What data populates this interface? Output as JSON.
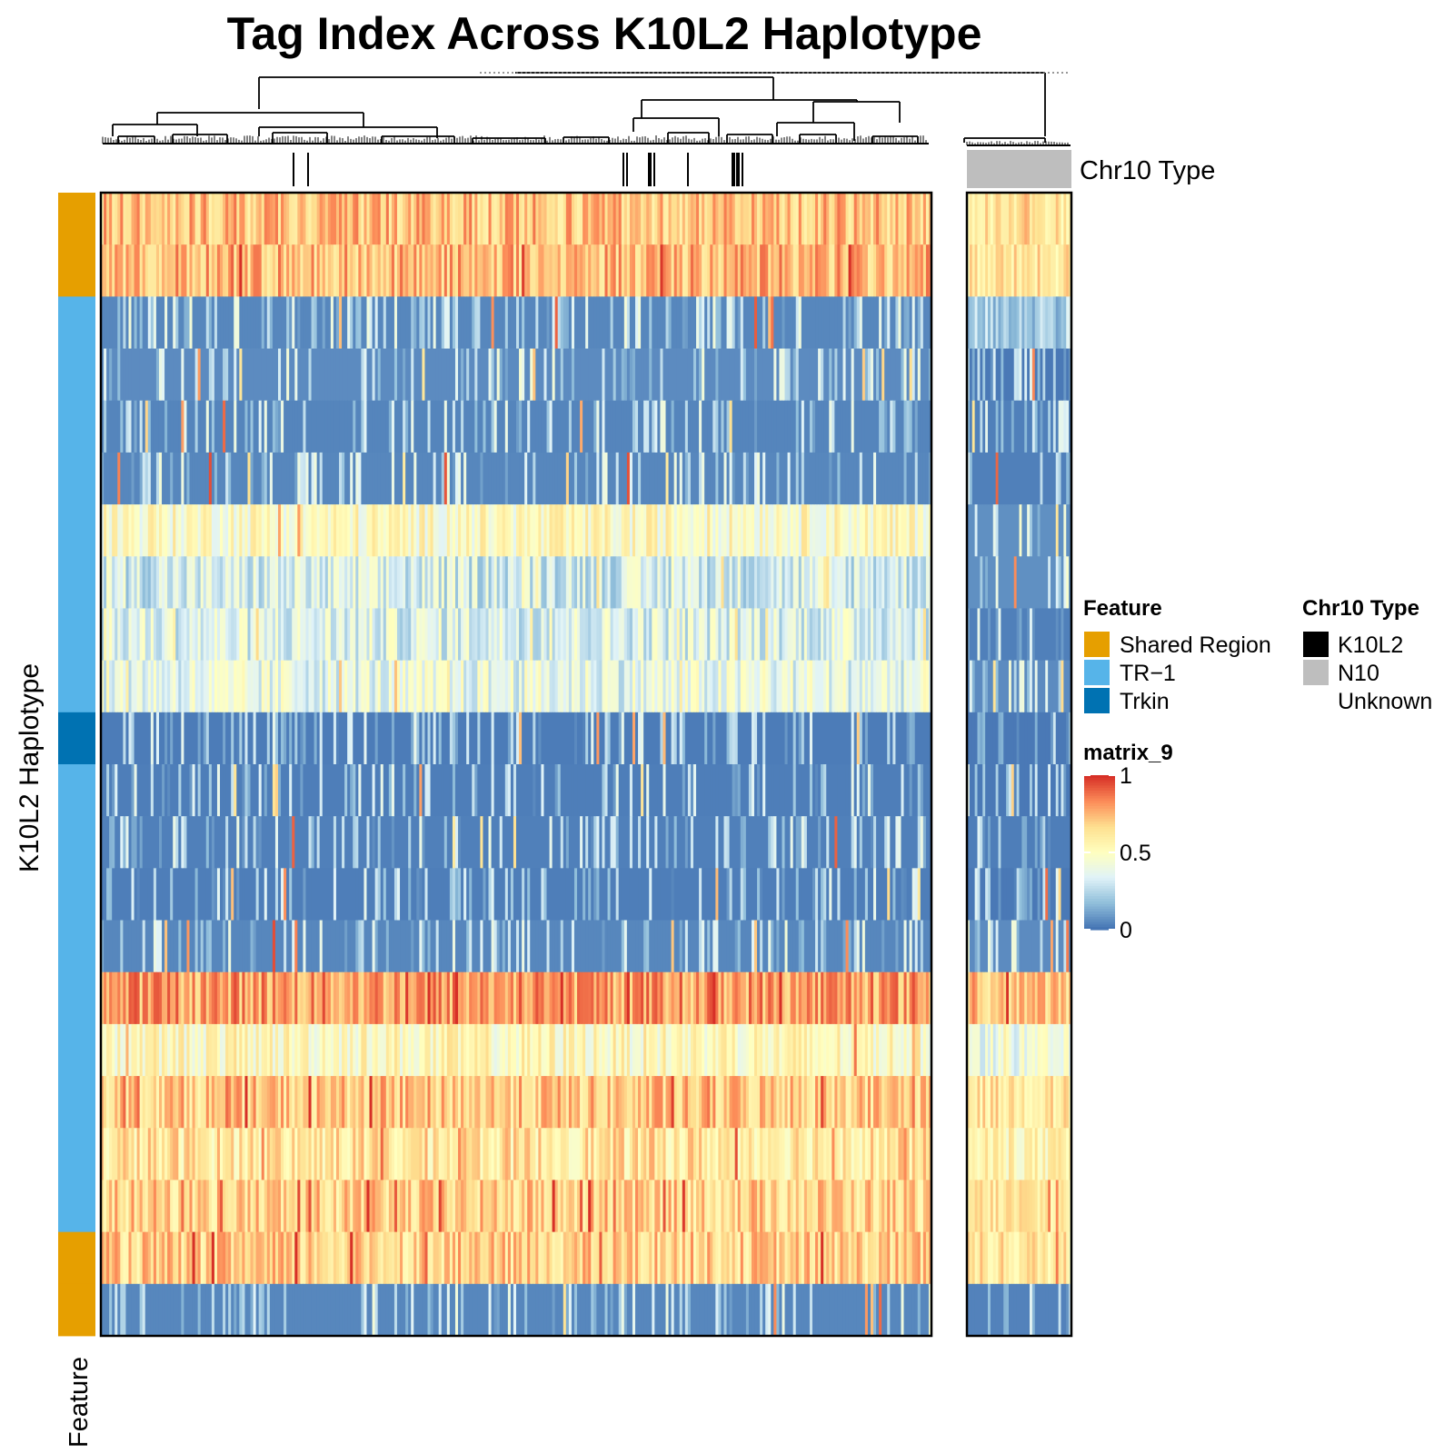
{
  "chart_data": {
    "type": "heatmap",
    "title": "Tag Index Across K10L2 Haplotype",
    "row_axis_label": "K10L2 Haplotype",
    "row_annotation_label": "Feature",
    "column_annotation_label": "Chr10 Type",
    "color_scale": {
      "name": "matrix_9",
      "min": 0,
      "max": 1,
      "ticks": [
        "1",
        "0.5",
        "0"
      ],
      "colors": [
        "#4575b4",
        "#91bfdb",
        "#e0f3f8",
        "#ffffbf",
        "#fee090",
        "#fc8d59",
        "#d73027"
      ]
    },
    "feature_legend": {
      "title": "Feature",
      "entries": [
        {
          "label": "Shared Region",
          "color": "#E69F00"
        },
        {
          "label": "TR−1",
          "color": "#56B4E9"
        },
        {
          "label": "Trkin",
          "color": "#0072B2"
        }
      ]
    },
    "chr10_legend": {
      "title": "Chr10 Type",
      "entries": [
        {
          "label": "K10L2",
          "color": "#000000"
        },
        {
          "label": "N10",
          "color": "#BEBEBE"
        },
        {
          "label": "Unknown",
          "color": "#FFFFFF"
        }
      ]
    },
    "row_features": [
      "Shared Region",
      "Shared Region",
      "TR-1",
      "TR-1",
      "TR-1",
      "TR-1",
      "TR-1",
      "TR-1",
      "TR-1",
      "TR-1",
      "Trkin",
      "TR-1",
      "TR-1",
      "TR-1",
      "TR-1",
      "TR-1",
      "TR-1",
      "TR-1",
      "TR-1",
      "TR-1",
      "Shared Region",
      "Shared Region"
    ],
    "column_groups": [
      {
        "group": "K10L2 / Unknown (dendrogram cluster 1)",
        "approx_columns": 300,
        "chr10_type_marks": "K10L2 ticks shown at a few columns"
      },
      {
        "group": "N10",
        "approx_columns": 40,
        "chr10_type": "N10"
      }
    ],
    "row_mean_values": {
      "main_panel": [
        0.72,
        0.74,
        0.08,
        0.1,
        0.07,
        0.08,
        0.5,
        0.32,
        0.35,
        0.38,
        0.03,
        0.04,
        0.05,
        0.04,
        0.08,
        0.8,
        0.52,
        0.7,
        0.62,
        0.68,
        0.68,
        0.08
      ],
      "n10_panel": [
        0.62,
        0.62,
        0.22,
        0.02,
        0.05,
        0.05,
        0.12,
        0.12,
        0.05,
        0.1,
        0.02,
        0.02,
        0.04,
        0.02,
        0.1,
        0.7,
        0.4,
        0.62,
        0.55,
        0.62,
        0.62,
        0.06
      ]
    }
  }
}
